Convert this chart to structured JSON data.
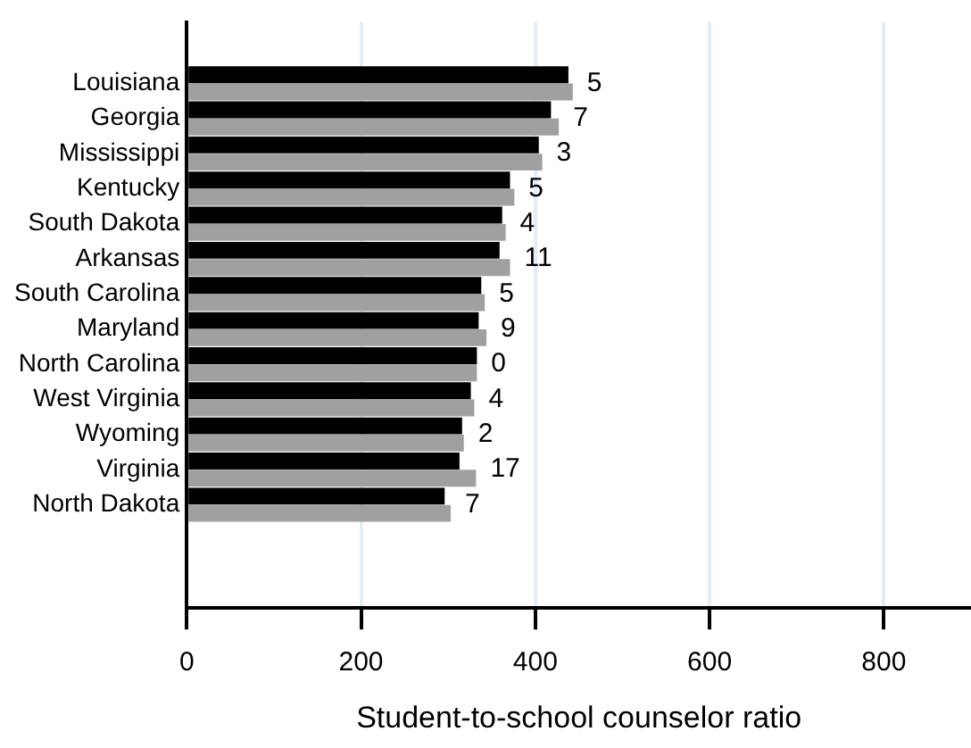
{
  "chart_data": {
    "type": "bar",
    "orientation": "horizontal",
    "xlabel": "Student-to-school counselor ratio",
    "categories": [
      "Louisiana",
      "Georgia",
      "Mississippi",
      "Kentucky",
      "South Dakota",
      "Arkansas",
      "South Carolina",
      "Maryland",
      "North Carolina",
      "West Virginia",
      "Wyoming",
      "Virginia",
      "North Dakota"
    ],
    "series": [
      {
        "color": "#000000",
        "values": [
          438,
          418,
          404,
          371,
          362,
          359,
          338,
          335,
          333,
          326,
          316,
          313,
          296
        ]
      },
      {
        "color": "#a0a0a0",
        "values": [
          443,
          427,
          408,
          376,
          366,
          371,
          342,
          344,
          333,
          330,
          318,
          332,
          303
        ]
      }
    ],
    "xlim": [
      0,
      900
    ],
    "xticks": [
      0,
      200,
      400,
      600,
      800
    ],
    "grid": "x",
    "legend": false,
    "annotations": [
      {
        "text": "5",
        "x": 443,
        "y": "Louisiana"
      },
      {
        "text": "7",
        "x": 427,
        "y": "Georgia"
      },
      {
        "text": "3",
        "x": 408,
        "y": "Mississippi"
      },
      {
        "text": "5",
        "x": 376,
        "y": "Kentucky"
      },
      {
        "text": "4",
        "x": 366,
        "y": "South Dakota"
      },
      {
        "text": "11",
        "x": 371,
        "y": "Arkansas"
      },
      {
        "text": "5",
        "x": 342,
        "y": "South Carolina"
      },
      {
        "text": "9",
        "x": 344,
        "y": "Maryland"
      },
      {
        "text": "0",
        "x": 333,
        "y": "North Carolina"
      },
      {
        "text": "4",
        "x": 330,
        "y": "West Virginia"
      },
      {
        "text": "2",
        "x": 318,
        "y": "Wyoming"
      },
      {
        "text": "17",
        "x": 332,
        "y": "Virginia"
      },
      {
        "text": "7",
        "x": 303,
        "y": "North Dakota"
      }
    ]
  }
}
